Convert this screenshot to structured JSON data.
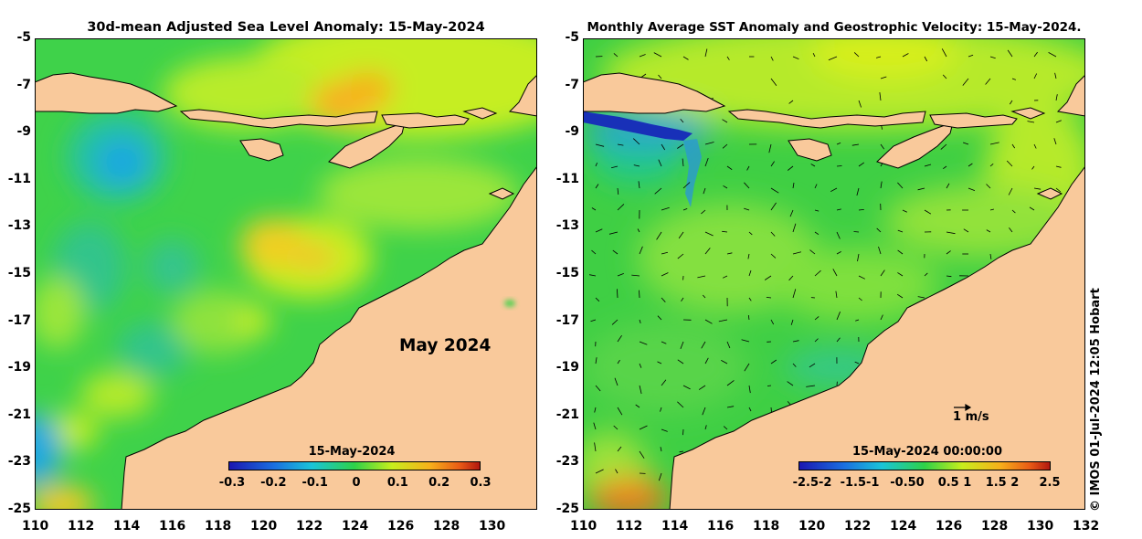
{
  "left_panel": {
    "title": "30d-mean Adjusted Sea Level Anomaly: 15-May-2024",
    "month_label": "May 2024",
    "colorbar": {
      "label": "15-May-2024",
      "ticks": [
        "-0.3",
        "-0.2",
        "-0.1",
        "0",
        "0.1",
        "0.2",
        "0.3"
      ]
    }
  },
  "right_panel": {
    "title": "Monthly Average SST Anomaly  and Geostrophic Velocity: 15-May-2024.",
    "scale_label": "1 m/s",
    "colorbar": {
      "label": "15-May-2024 00:00:00",
      "ticks": [
        "-2.5-2",
        "-1.5-1",
        "-0.50",
        "0.5 1",
        "1.5 2",
        "2.5"
      ]
    }
  },
  "y_axis_ticks": [
    "-5",
    "-7",
    "-9",
    "-11",
    "-13",
    "-15",
    "-17",
    "-19",
    "-21",
    "-23",
    "-25"
  ],
  "x_axis_ticks": [
    "110",
    "112",
    "114",
    "116",
    "118",
    "120",
    "122",
    "124",
    "126",
    "128",
    "130",
    "132"
  ],
  "copyright": "© IMOS 01-Jul-2024 12:05 Hobart",
  "colors": {
    "land": "#f9c99b",
    "ocean_green": "#3fcf44",
    "ocean_yellow": "#c8ee1c",
    "anomaly_blue": "#1aa8e0",
    "anomaly_orange": "#f7b01a"
  }
}
